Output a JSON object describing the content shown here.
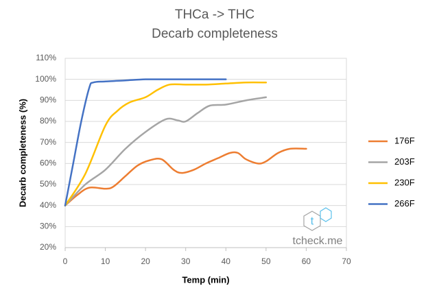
{
  "chart_data": {
    "type": "line",
    "title": "THCa -> THC",
    "subtitle": "Decarb completeness",
    "x_label": "Temp (min)",
    "y_label": "Decarb completeness (%)",
    "xlim": [
      0,
      70
    ],
    "xticks": [
      0,
      10,
      20,
      30,
      40,
      50,
      60,
      70
    ],
    "ylim": [
      20,
      110
    ],
    "yticks": [
      {
        "value": 20,
        "label": "20%"
      },
      {
        "value": 30,
        "label": "30%"
      },
      {
        "value": 40,
        "label": "40%"
      },
      {
        "value": 50,
        "label": "50%"
      },
      {
        "value": 60,
        "label": "60%"
      },
      {
        "value": 70,
        "label": "70%"
      },
      {
        "value": 80,
        "label": "80%"
      },
      {
        "value": 90,
        "label": "90%"
      },
      {
        "value": 100,
        "label": "100%"
      },
      {
        "value": 110,
        "label": "110%"
      }
    ],
    "grid": true,
    "legend": "right",
    "series": [
      {
        "name": "176F",
        "color": "#ed7d31",
        "x": [
          0,
          3,
          6,
          10,
          12,
          15,
          18,
          21,
          24,
          27,
          29,
          32,
          35,
          38,
          41,
          43,
          45,
          48,
          50,
          53,
          56,
          60
        ],
        "values": [
          40,
          45,
          48.5,
          48,
          49,
          54,
          59,
          61.5,
          62,
          57,
          55.5,
          57,
          60,
          62.5,
          65,
          65,
          62,
          60,
          61,
          65,
          67,
          67
        ]
      },
      {
        "name": "203F",
        "color": "#a5a5a5",
        "x": [
          0,
          5,
          10,
          15,
          20,
          25,
          28,
          30,
          33,
          36,
          40,
          45,
          50
        ],
        "values": [
          40,
          50,
          57,
          67,
          75,
          81,
          80.5,
          80,
          84,
          87.5,
          88,
          90,
          91.5
        ]
      },
      {
        "name": "230F",
        "color": "#ffc000",
        "x": [
          0,
          5,
          10,
          13,
          16,
          20,
          23,
          26,
          30,
          35,
          40,
          45,
          50
        ],
        "values": [
          40,
          55,
          78,
          85,
          89,
          91.5,
          95,
          97.5,
          97.5,
          97.5,
          98,
          98.5,
          98.5
        ]
      },
      {
        "name": "266F",
        "color": "#4472c4",
        "x": [
          0,
          2,
          4,
          6,
          7,
          10,
          15,
          20,
          25,
          30,
          40
        ],
        "values": [
          40,
          60,
          80,
          96,
          98.5,
          99,
          99.5,
          100,
          100,
          100,
          100
        ]
      }
    ],
    "watermark": "tcheck.me",
    "logo": "t"
  }
}
